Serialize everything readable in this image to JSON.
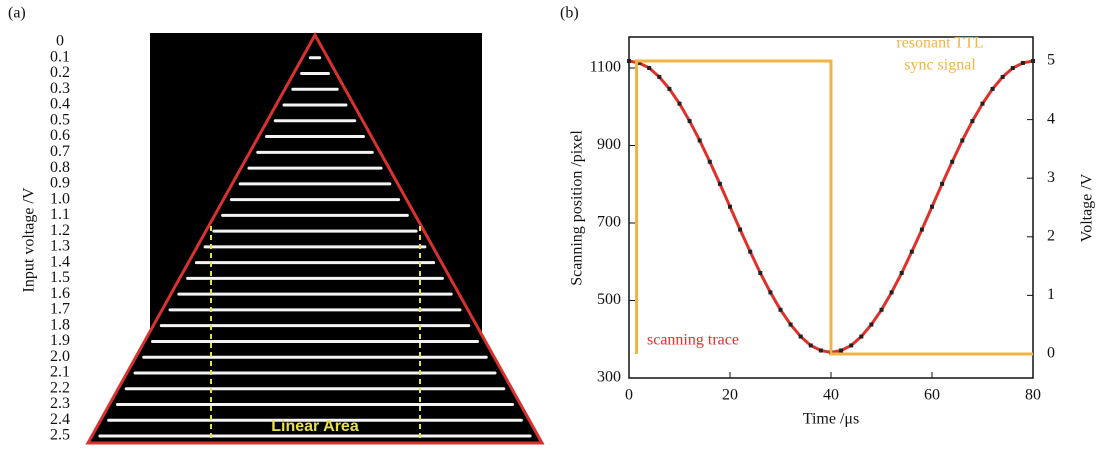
{
  "chart_data": [
    {
      "type": "scan-image",
      "panel_label": "(a)",
      "ylabel": "Input voltage /V",
      "categories": [
        "0",
        "0.1",
        "0.2",
        "0.3",
        "0.4",
        "0.5",
        "0.6",
        "0.7",
        "0.8",
        "0.9",
        "1.0",
        "1.1",
        "1.2",
        "1.3",
        "1.4",
        "1.5",
        "1.6",
        "1.7",
        "1.8",
        "1.9",
        "2.0",
        "2.1",
        "2.2",
        "2.3",
        "2.4",
        "2.5"
      ],
      "annotation": "Linear Area",
      "outline_color": "#d8322f",
      "annotation_color": "#e8e04a"
    },
    {
      "type": "line",
      "panel_label": "(b)",
      "xlabel": "Time /μs",
      "ylabel": "Scanning position /pixel",
      "y2label": "Voltage /V",
      "xlim": [
        0,
        80
      ],
      "xticks": [
        0,
        20,
        40,
        60,
        80
      ],
      "ylim": [
        300,
        1180
      ],
      "yticks": [
        300,
        500,
        700,
        900,
        1100
      ],
      "y2lim": [
        -0.41,
        5.41
      ],
      "y2ticks": [
        0,
        1,
        2,
        3,
        4,
        5
      ],
      "series": [
        {
          "name": "scanning trace",
          "color": "#e0302a",
          "marker_color": "#222222",
          "x": [
            0,
            2,
            4,
            6,
            8,
            10,
            12,
            14,
            16,
            18,
            20,
            22,
            24,
            26,
            28,
            30,
            32,
            34,
            36,
            38,
            40,
            42,
            44,
            46,
            48,
            50,
            52,
            54,
            56,
            58,
            60,
            62,
            64,
            66,
            68,
            70,
            72,
            74,
            76,
            78,
            80
          ],
          "values": [
            1118,
            1113,
            1100,
            1077,
            1046,
            1008,
            963,
            913,
            858,
            801,
            742,
            683,
            626,
            571,
            521,
            476,
            438,
            407,
            384,
            371,
            366,
            371,
            384,
            407,
            438,
            476,
            521,
            571,
            626,
            683,
            742,
            801,
            858,
            913,
            963,
            1008,
            1046,
            1077,
            1100,
            1113,
            1118
          ]
        },
        {
          "name": [
            "resonant TTL",
            "sync signal"
          ],
          "color": "#f0b445",
          "axis": "y2",
          "x": [
            1.5,
            1.5,
            40,
            40,
            80
          ],
          "values": [
            0,
            5,
            5,
            0,
            0
          ]
        }
      ]
    }
  ]
}
